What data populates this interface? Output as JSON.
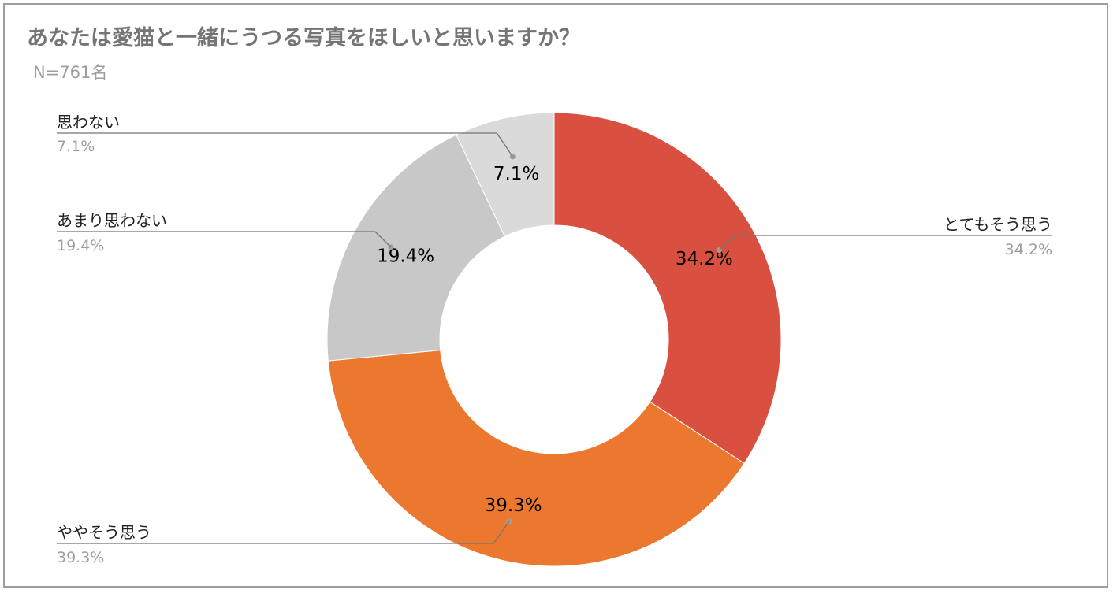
{
  "chart_data": {
    "type": "pie",
    "donut": true,
    "title": "あなたは愛猫と一緒にうつる写真をほしいと思いますか？",
    "subtitle": "N=761名",
    "slices": [
      {
        "label": "とてもそう思う",
        "value": 34.2,
        "value_text": "34.2%",
        "color": "#d95040"
      },
      {
        "label": "ややそう思う",
        "value": 39.3,
        "value_text": "39.3%",
        "color": "#ec7830"
      },
      {
        "label": "あまり思わない",
        "value": 19.4,
        "value_text": "19.4%",
        "color": "#c8c8c8"
      },
      {
        "label": "思わない",
        "value": 7.1,
        "value_text": "7.1%",
        "color": "#dadada"
      }
    ],
    "legend": "callouts"
  }
}
